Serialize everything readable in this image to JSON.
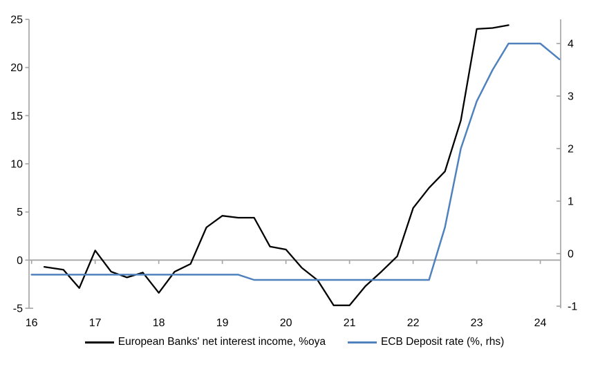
{
  "colors": {
    "background": "#ffffff",
    "axis_gray": "#a6a6a6",
    "zero_line_gray": "#a6a6a6",
    "text": "#000000",
    "nii_black": "#000000",
    "ecb_blue": "#4f81bd"
  },
  "chart_data": {
    "type": "line",
    "title": "",
    "grid": "zero-line-only",
    "legend_position": "bottom",
    "x_axis": {
      "tick_labels": [
        "16",
        "17",
        "18",
        "19",
        "20",
        "21",
        "22",
        "23",
        "24"
      ],
      "tick_values": [
        16,
        17,
        18,
        19,
        20,
        21,
        22,
        23,
        24
      ],
      "range": [
        15.96,
        24.32
      ]
    },
    "left_axis": {
      "tick_labels": [
        "-5",
        "0",
        "5",
        "10",
        "15",
        "20",
        "25"
      ],
      "tick_values": [
        -5,
        0,
        5,
        10,
        15,
        20,
        25
      ],
      "range": [
        -5,
        25
      ]
    },
    "right_axis": {
      "tick_labels": [
        "-1",
        "0",
        "1",
        "2",
        "3",
        "4"
      ],
      "tick_values": [
        -1,
        0,
        1,
        2,
        3,
        4
      ],
      "range": [
        -1.04,
        4.46
      ]
    },
    "series": [
      {
        "name": "European Banks' net interest income, %oya",
        "color": "#000000",
        "width": 2.3,
        "axis": "left",
        "points": [
          [
            16.2,
            -0.7
          ],
          [
            16.5,
            -1.0
          ],
          [
            16.75,
            -2.9
          ],
          [
            17.0,
            1.0
          ],
          [
            17.25,
            -1.2
          ],
          [
            17.5,
            -1.8
          ],
          [
            17.75,
            -1.3
          ],
          [
            18.0,
            -3.4
          ],
          [
            18.25,
            -1.2
          ],
          [
            18.5,
            -0.4
          ],
          [
            18.75,
            3.4
          ],
          [
            19.0,
            4.6
          ],
          [
            19.25,
            4.4
          ],
          [
            19.5,
            4.4
          ],
          [
            19.75,
            1.4
          ],
          [
            20.0,
            1.1
          ],
          [
            20.25,
            -0.8
          ],
          [
            20.5,
            -2.1
          ],
          [
            20.75,
            -4.7
          ],
          [
            21.0,
            -4.7
          ],
          [
            21.25,
            -2.7
          ],
          [
            21.5,
            -1.2
          ],
          [
            21.75,
            0.4
          ],
          [
            22.0,
            5.4
          ],
          [
            22.25,
            7.5
          ],
          [
            22.5,
            9.2
          ],
          [
            22.75,
            14.5
          ],
          [
            23.0,
            24.0
          ],
          [
            23.25,
            24.1
          ],
          [
            23.5,
            24.4
          ]
        ]
      },
      {
        "name": "ECB Deposit rate (%, rhs)",
        "color": "#4f81bd",
        "width": 2.5,
        "axis": "right",
        "points": [
          [
            16.0,
            -0.4
          ],
          [
            19.25,
            -0.4
          ],
          [
            19.5,
            -0.5
          ],
          [
            22.25,
            -0.5
          ],
          [
            22.5,
            0.5
          ],
          [
            22.75,
            2.0
          ],
          [
            23.0,
            2.9
          ],
          [
            23.25,
            3.5
          ],
          [
            23.5,
            4.0
          ],
          [
            24.0,
            4.0
          ],
          [
            24.3,
            3.7
          ]
        ]
      }
    ]
  },
  "legend": {
    "items": [
      {
        "label": "European Banks' net interest income, %oya"
      },
      {
        "label": "ECB Deposit rate (%, rhs)"
      }
    ]
  }
}
